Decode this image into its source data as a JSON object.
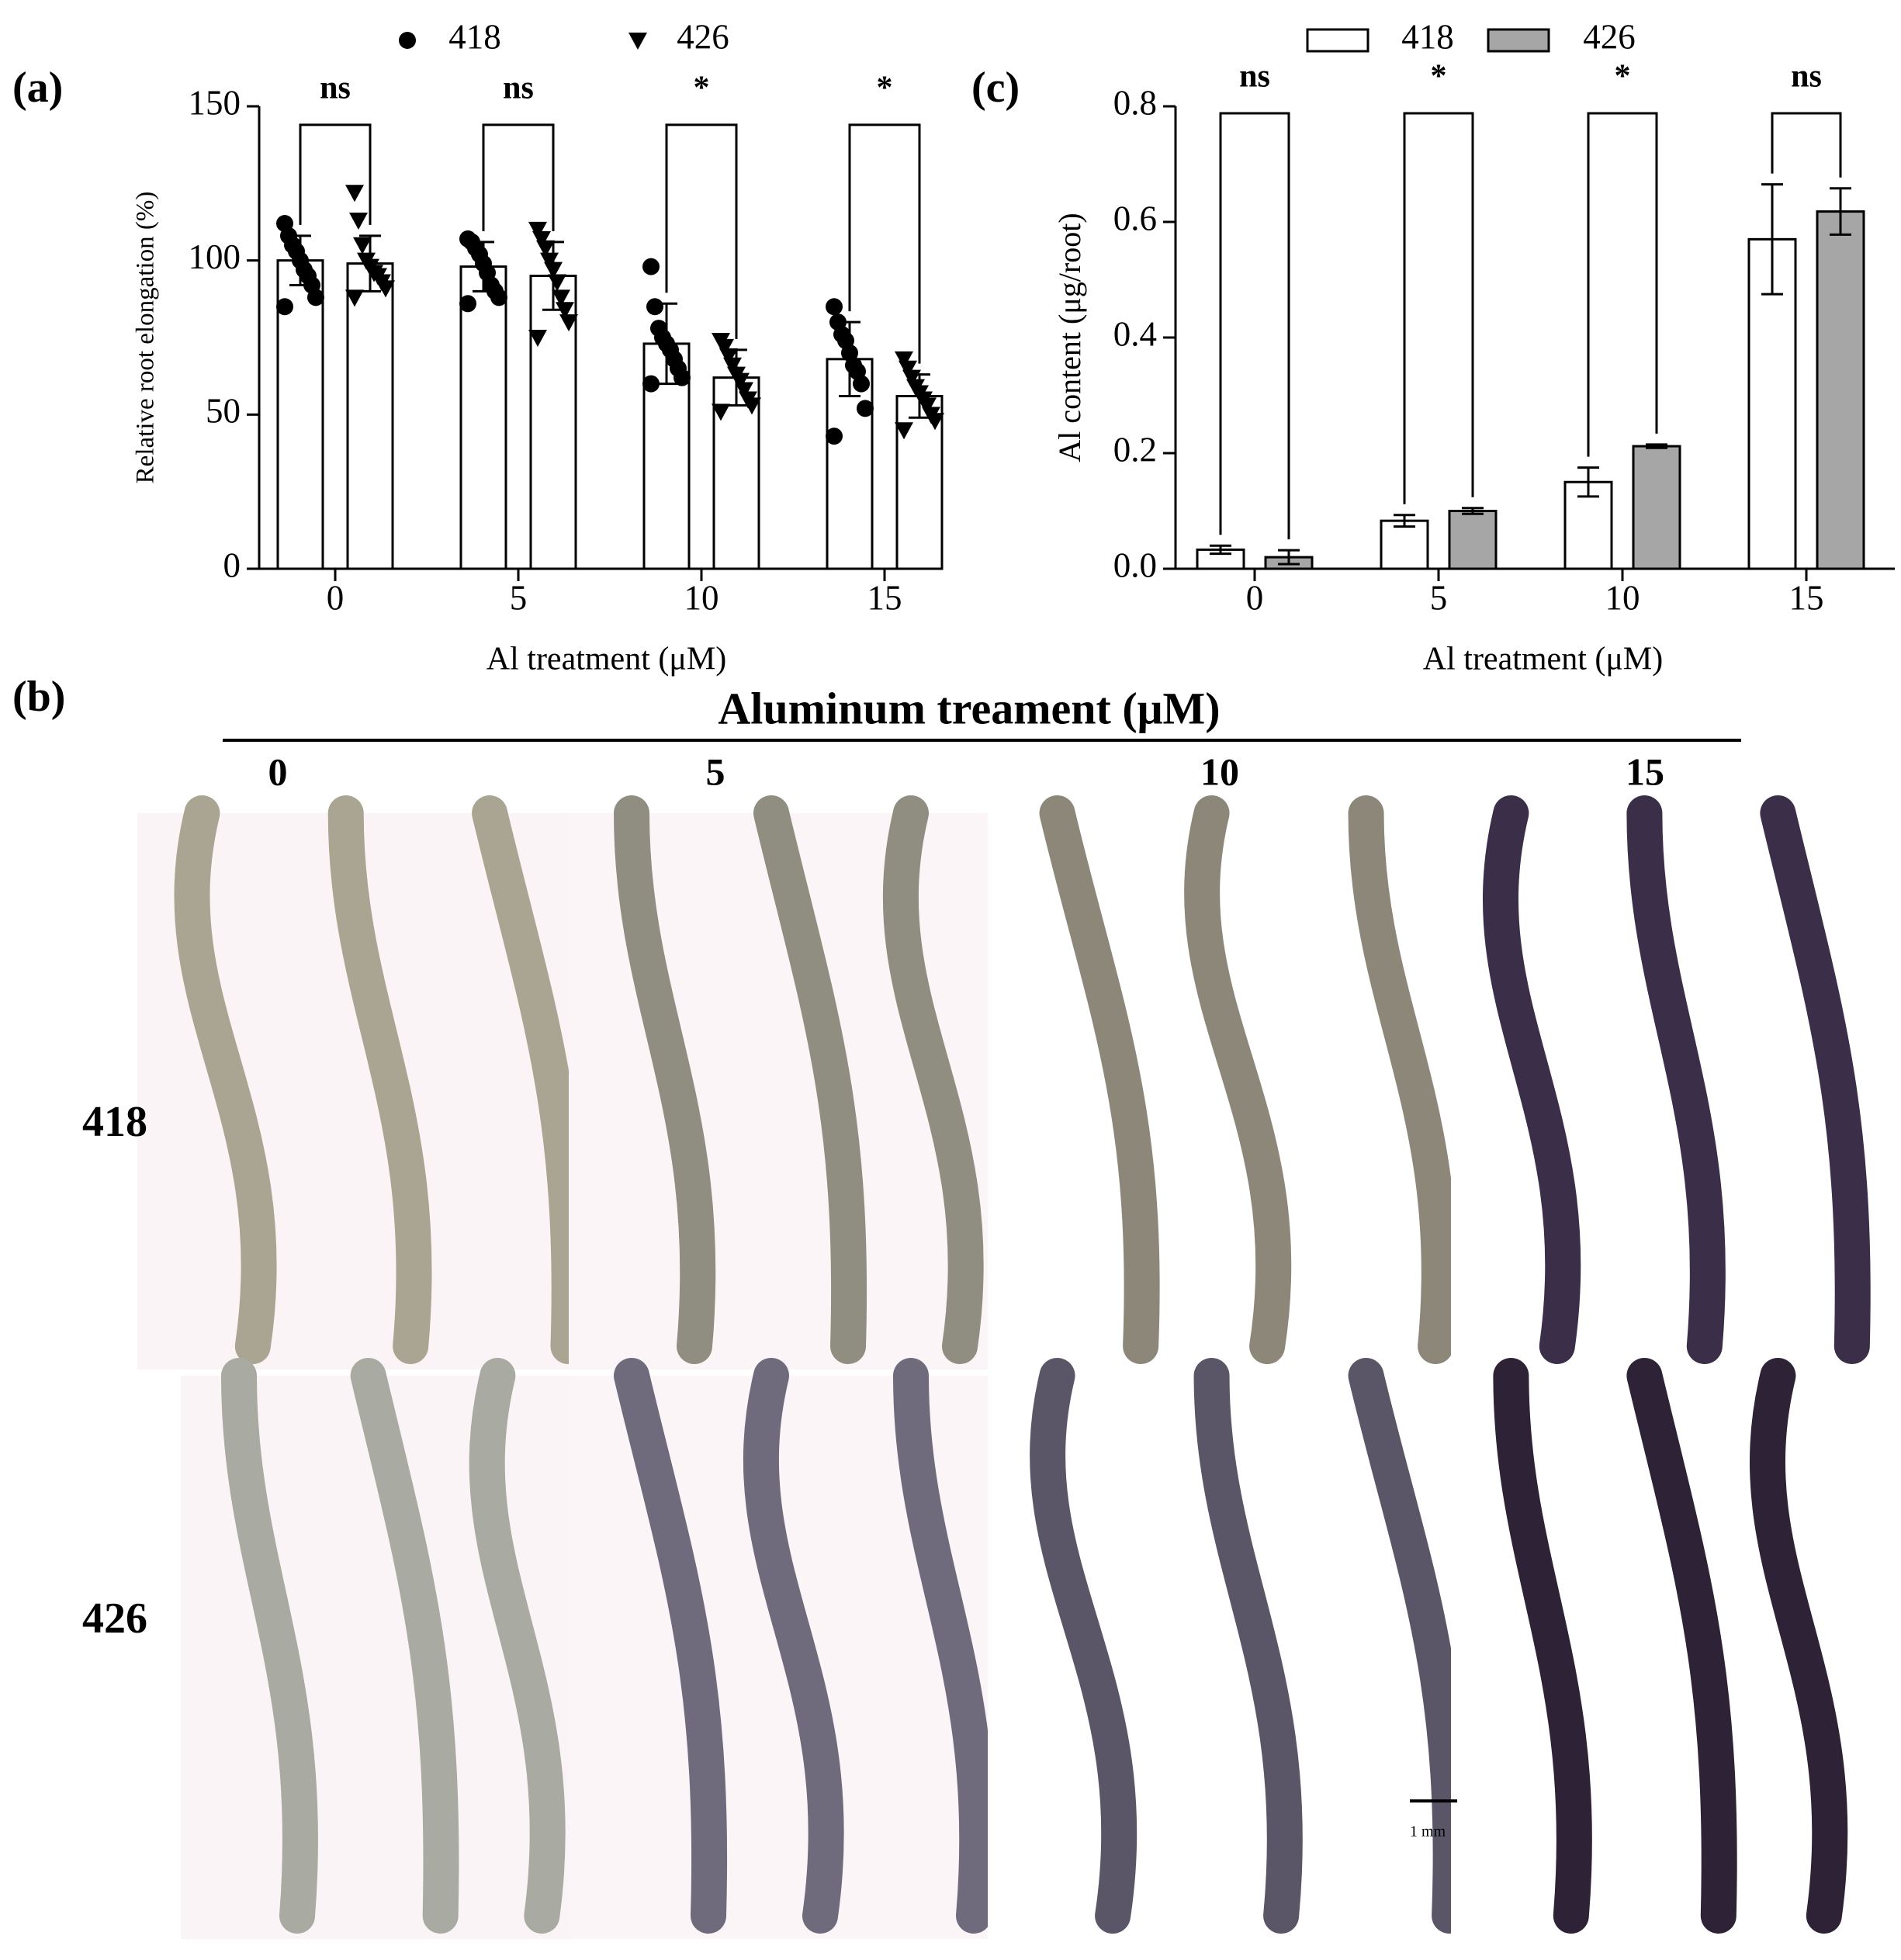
{
  "chart_data": [
    {
      "type": "bar",
      "panel_label": "(a)",
      "ylabel": "Relative root elongation (%)",
      "xlabel": "Al treatment (μM)",
      "categories": [
        "0",
        "5",
        "10",
        "15"
      ],
      "ylim": [
        0,
        150
      ],
      "yticks": [
        0,
        50,
        100,
        150
      ],
      "edge_color": "#000000",
      "series": [
        {
          "name": "418",
          "color": "#ffffff",
          "marker": "circle",
          "values": [
            100,
            98,
            73,
            68
          ],
          "errors": [
            8,
            8,
            13,
            12
          ],
          "points": [
            [
              112,
              108,
              105,
              103,
              100,
              97,
              95,
              92,
              88,
              85
            ],
            [
              107,
              106,
              104,
              102,
              99,
              96,
              92,
              90,
              88,
              86
            ],
            [
              98,
              85,
              78,
              75,
              73,
              71,
              68,
              65,
              62,
              60
            ],
            [
              85,
              80,
              76,
              74,
              70,
              66,
              64,
              60,
              52,
              43
            ]
          ]
        },
        {
          "name": "426",
          "color": "#ffffff",
          "marker": "triangle",
          "values": [
            99,
            95,
            62,
            56
          ],
          "errors": [
            9,
            11,
            9,
            7
          ],
          "points": [
            [
              122,
              113,
              105,
              100,
              98,
              96,
              95,
              93,
              91,
              88
            ],
            [
              110,
              107,
              104,
              100,
              97,
              93,
              88,
              84,
              80,
              75
            ],
            [
              74,
              72,
              69,
              66,
              63,
              61,
              58,
              55,
              53,
              51
            ],
            [
              68,
              65,
              62,
              59,
              57,
              55,
              53,
              50,
              48,
              45
            ]
          ]
        }
      ],
      "annotations": [
        "ns",
        "ns",
        "*",
        "*"
      ]
    },
    {
      "type": "bar",
      "panel_label": "(c)",
      "ylabel": "Al content (μg/root)",
      "xlabel": "Al treatment (μM)",
      "categories": [
        "0",
        "5",
        "10",
        "15"
      ],
      "ylim": [
        0,
        0.8
      ],
      "yticks": [
        {
          "value": 0,
          "label": "0.0"
        },
        0.2,
        0.4,
        0.6,
        0.8
      ],
      "edge_color": "#000000",
      "series": [
        {
          "name": "418",
          "color": "#ffffff",
          "values": [
            0.033,
            0.083,
            0.15,
            0.57
          ],
          "errors": [
            0.007,
            0.01,
            0.025,
            0.095
          ]
        },
        {
          "name": "426",
          "color": "#a6a6a6",
          "values": [
            0.02,
            0.1,
            0.212,
            0.618
          ],
          "errors": [
            0.012,
            0.005,
            0.003,
            0.04
          ]
        }
      ],
      "annotations": [
        "ns",
        "*",
        "*",
        "ns"
      ]
    }
  ],
  "photo_panel": {
    "panel_label": "(b)",
    "title": "Aluminum treament (μM)",
    "columns": [
      "0",
      "5",
      "10",
      "15"
    ],
    "rows": [
      "418",
      "426"
    ],
    "scale_bar": "1 mm"
  }
}
